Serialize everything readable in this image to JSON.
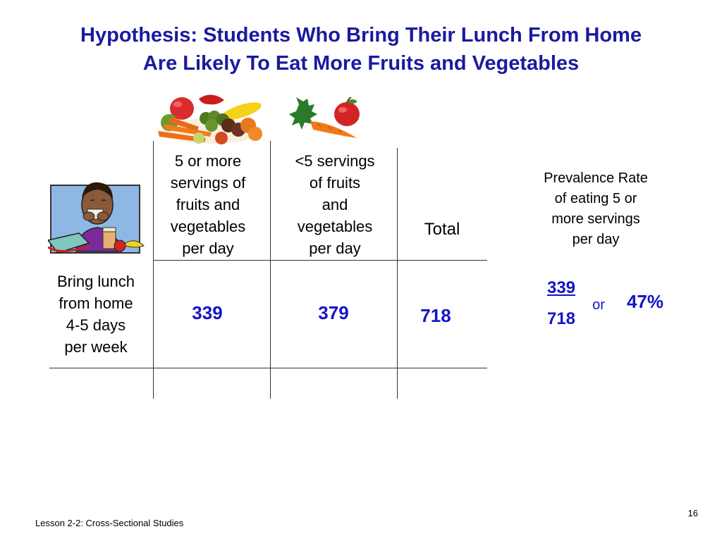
{
  "slide": {
    "title_line1": "Hypothesis: Students Who Bring Their Lunch From Home",
    "title_line2": "Are Likely To Eat More Fruits and Vegetables"
  },
  "table": {
    "col1_header": [
      "5 or more",
      "servings of",
      "fruits and",
      "vegetables",
      "per day"
    ],
    "col2_header": [
      "<5 servings",
      "of fruits",
      "and",
      "vegetables",
      "per day"
    ],
    "col3_header": "Total",
    "row_label": [
      "Bring lunch",
      "from home",
      "4-5 days",
      "per week"
    ],
    "values": {
      "col1": "339",
      "col2": "379",
      "total": "718"
    }
  },
  "prevalence": {
    "label": [
      "Prevalence  Rate",
      "of  eating 5 or",
      "more servings",
      "per day"
    ],
    "numerator": "339",
    "denominator": "718",
    "or_text": "or",
    "percent": "47%"
  },
  "footer": {
    "lesson": "Lesson 2-2: Cross-Sectional Studies",
    "page_number": "16"
  },
  "colors": {
    "title": "#1a1aa0",
    "value": "#1515c8"
  },
  "images": {
    "top_left": "fruit-and-vegetable-pile-image",
    "top_right": "carrot-and-apple-image",
    "row": "student-eating-lunch-image"
  }
}
